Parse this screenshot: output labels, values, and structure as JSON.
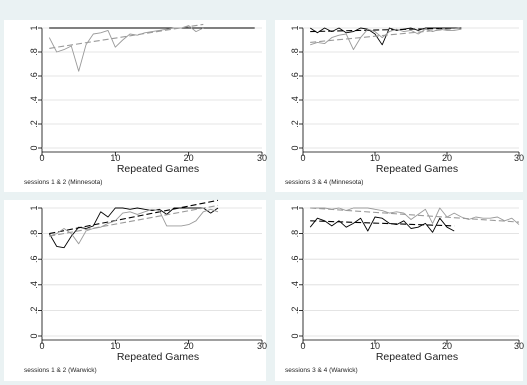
{
  "chart_data": [
    {
      "type": "line",
      "xlabel": "Repeated Games",
      "note": "sessions 1 & 2 (Minnesota)",
      "xlim": [
        0,
        30
      ],
      "ylim": [
        0,
        1
      ],
      "xticks": [
        "0",
        "10",
        "20",
        "30"
      ],
      "yticks": [
        "0",
        ".2",
        ".4",
        ".6",
        ".8",
        "1"
      ],
      "series": [
        {
          "color": "#000000",
          "dash": false,
          "x": [
            1,
            2,
            3,
            4,
            5,
            6,
            7,
            8,
            9,
            10,
            11,
            12,
            13,
            14,
            15,
            16,
            17,
            18,
            19,
            20,
            21,
            22,
            23,
            24,
            25,
            26,
            27,
            28,
            29
          ],
          "y": [
            1,
            1,
            1,
            1,
            1,
            1,
            1,
            1,
            1,
            1,
            1,
            1,
            1,
            1,
            1,
            1,
            1,
            1,
            1,
            1,
            1,
            1,
            1,
            1,
            1,
            1,
            1,
            1,
            1
          ]
        },
        {
          "color": "#000000",
          "dash": true,
          "x": [
            1,
            29
          ],
          "y": [
            1,
            1
          ]
        },
        {
          "color": "#9a9a9a",
          "dash": false,
          "x": [
            1,
            2,
            3,
            4,
            5,
            6,
            7,
            8,
            9,
            10,
            11,
            12,
            13,
            14,
            15,
            16,
            17,
            18,
            19,
            20,
            21,
            22
          ],
          "y": [
            0.92,
            0.8,
            0.82,
            0.85,
            0.64,
            0.86,
            0.95,
            0.96,
            0.98,
            0.84,
            0.9,
            0.95,
            0.94,
            0.96,
            0.97,
            0.98,
            0.99,
            1.0,
            1.0,
            1.02,
            0.97,
            1.0
          ]
        },
        {
          "color": "#9a9a9a",
          "dash": true,
          "x": [
            1,
            22
          ],
          "y": [
            0.83,
            1.03
          ]
        }
      ]
    },
    {
      "type": "line",
      "xlabel": "Repeated Games",
      "note": "sessions 3 & 4 (Minnesota)",
      "xlim": [
        0,
        30
      ],
      "ylim": [
        0,
        1
      ],
      "xticks": [
        "0",
        "10",
        "20",
        "30"
      ],
      "yticks": [
        "0",
        ".2",
        ".4",
        ".6",
        ".8",
        "1"
      ],
      "series": [
        {
          "color": "#000000",
          "dash": false,
          "x": [
            1,
            2,
            3,
            4,
            5,
            6,
            7,
            8,
            9,
            10,
            11,
            12,
            13,
            14,
            15,
            16,
            17,
            18,
            19,
            20,
            21,
            22
          ],
          "y": [
            1,
            0.96,
            1.0,
            0.97,
            1.0,
            0.96,
            0.97,
            1.0,
            0.99,
            0.95,
            0.86,
            1.0,
            0.98,
            0.99,
            1.0,
            0.98,
            1.0,
            1.0,
            1.0,
            1.0,
            1.0,
            1.0
          ]
        },
        {
          "color": "#000000",
          "dash": true,
          "x": [
            1,
            22
          ],
          "y": [
            0.97,
            1.0
          ]
        },
        {
          "color": "#9a9a9a",
          "dash": false,
          "x": [
            1,
            2,
            3,
            4,
            5,
            6,
            7,
            8,
            9,
            10,
            11,
            12,
            13,
            14,
            15,
            16,
            17,
            18,
            19,
            20,
            21,
            22
          ],
          "y": [
            0.86,
            0.88,
            0.87,
            0.92,
            0.94,
            0.95,
            0.82,
            0.92,
            0.99,
            0.97,
            0.92,
            0.97,
            0.99,
            0.97,
            0.98,
            0.95,
            0.99,
            0.97,
            0.99,
            0.98,
            0.98,
            0.99
          ]
        },
        {
          "color": "#9a9a9a",
          "dash": true,
          "x": [
            1,
            22
          ],
          "y": [
            0.88,
            1.0
          ]
        }
      ]
    },
    {
      "type": "line",
      "xlabel": "Repeated Games",
      "note": "sessions 1 & 2 (Warwick)",
      "xlim": [
        0,
        30
      ],
      "ylim": [
        0,
        1
      ],
      "xticks": [
        "0",
        "10",
        "20",
        "30"
      ],
      "yticks": [
        "0",
        ".2",
        ".4",
        ".6",
        ".8",
        "1"
      ],
      "series": [
        {
          "color": "#000000",
          "dash": false,
          "x": [
            1,
            2,
            3,
            4,
            5,
            6,
            7,
            8,
            9,
            10,
            11,
            12,
            13,
            14,
            15,
            16,
            17,
            18,
            19,
            20,
            21,
            22,
            23,
            24
          ],
          "y": [
            0.8,
            0.7,
            0.69,
            0.78,
            0.85,
            0.84,
            0.86,
            0.97,
            0.93,
            1.0,
            1.0,
            0.99,
            1.0,
            0.99,
            0.98,
            0.99,
            0.95,
            1.0,
            1.0,
            1.0,
            1.0,
            1.0,
            0.96,
            1.0
          ]
        },
        {
          "color": "#000000",
          "dash": true,
          "x": [
            1,
            24
          ],
          "y": [
            0.8,
            1.06
          ]
        },
        {
          "color": "#9a9a9a",
          "dash": false,
          "x": [
            1,
            2,
            3,
            4,
            5,
            6,
            7,
            8,
            9,
            10,
            11,
            12,
            13,
            14,
            15,
            16,
            17,
            18,
            19,
            20,
            21,
            22,
            23,
            24
          ],
          "y": [
            0.78,
            0.8,
            0.84,
            0.8,
            0.72,
            0.82,
            0.84,
            0.85,
            0.88,
            0.9,
            0.96,
            0.97,
            0.95,
            0.97,
            0.99,
            0.98,
            0.86,
            0.86,
            0.86,
            0.87,
            0.9,
            0.97,
            0.99,
            0.97
          ]
        },
        {
          "color": "#9a9a9a",
          "dash": true,
          "x": [
            1,
            24
          ],
          "y": [
            0.78,
            1.02
          ]
        }
      ]
    },
    {
      "type": "line",
      "xlabel": "Repeated Games",
      "note": "sessions 3 & 4 (Warwick)",
      "xlim": [
        0,
        30
      ],
      "ylim": [
        0,
        1
      ],
      "xticks": [
        "0",
        "10",
        "20",
        "30"
      ],
      "yticks": [
        "0",
        ".2",
        ".4",
        ".6",
        ".8",
        "1"
      ],
      "series": [
        {
          "color": "#000000",
          "dash": false,
          "x": [
            1,
            2,
            3,
            4,
            5,
            6,
            7,
            8,
            9,
            10,
            11,
            12,
            13,
            14,
            15,
            16,
            17,
            18,
            19,
            20,
            21
          ],
          "y": [
            0.85,
            0.92,
            0.9,
            0.86,
            0.9,
            0.85,
            0.88,
            0.92,
            0.82,
            0.93,
            0.92,
            0.88,
            0.87,
            0.9,
            0.84,
            0.85,
            0.88,
            0.81,
            0.92,
            0.85,
            0.82
          ]
        },
        {
          "color": "#000000",
          "dash": true,
          "x": [
            1,
            21
          ],
          "y": [
            0.9,
            0.86
          ]
        },
        {
          "color": "#9a9a9a",
          "dash": false,
          "x": [
            1,
            2,
            3,
            4,
            5,
            6,
            7,
            8,
            9,
            10,
            11,
            12,
            13,
            14,
            15,
            16,
            17,
            18,
            19,
            20,
            21,
            22,
            23,
            24,
            25,
            26,
            27,
            28,
            29,
            30
          ],
          "y": [
            1.0,
            1.0,
            1.0,
            0.99,
            1.0,
            0.98,
            1.0,
            1.0,
            1.0,
            0.99,
            0.98,
            0.96,
            0.97,
            0.96,
            0.91,
            0.95,
            0.99,
            0.88,
            1.0,
            0.93,
            0.96,
            0.93,
            0.91,
            0.93,
            0.92,
            0.92,
            0.93,
            0.9,
            0.92,
            0.87
          ]
        },
        {
          "color": "#9a9a9a",
          "dash": true,
          "x": [
            1,
            30
          ],
          "y": [
            1.0,
            0.89
          ]
        }
      ]
    }
  ]
}
